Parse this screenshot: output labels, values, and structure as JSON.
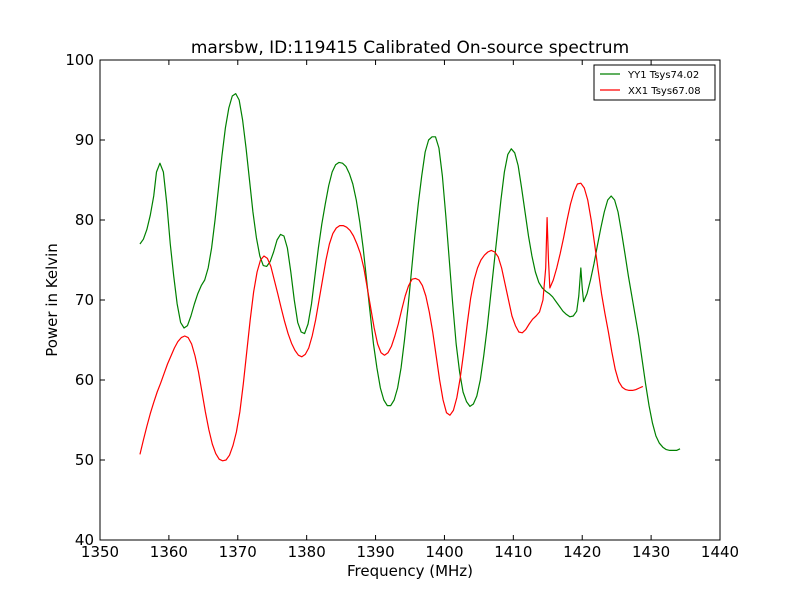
{
  "chart_data": {
    "type": "line",
    "title": "marsbw, ID:119415 Calibrated On-source spectrum",
    "xlabel": "Frequency (MHz)",
    "ylabel": "Power in Kelvin",
    "xlim": [
      1350,
      1440
    ],
    "ylim": [
      40,
      100
    ],
    "xticks": [
      "1350",
      "1360",
      "1370",
      "1380",
      "1390",
      "1400",
      "1410",
      "1420",
      "1430",
      "1440"
    ],
    "yticks": [
      "40",
      "50",
      "60",
      "70",
      "80",
      "90",
      "100"
    ],
    "grid": false,
    "legend_position": "top-right",
    "series": [
      {
        "name": "YY1 Tsys74.02",
        "color": "#008000",
        "points": [
          [
            1355.8,
            77
          ],
          [
            1356.3,
            77.6
          ],
          [
            1356.8,
            78.8
          ],
          [
            1357.3,
            80.6
          ],
          [
            1357.8,
            83
          ],
          [
            1358.2,
            86
          ],
          [
            1358.7,
            87.1
          ],
          [
            1359.2,
            86
          ],
          [
            1359.7,
            82
          ],
          [
            1360.2,
            77
          ],
          [
            1360.7,
            73
          ],
          [
            1361.2,
            69.5
          ],
          [
            1361.7,
            67.2
          ],
          [
            1362.2,
            66.5
          ],
          [
            1362.7,
            66.8
          ],
          [
            1363.2,
            68
          ],
          [
            1363.7,
            69.5
          ],
          [
            1364.2,
            70.8
          ],
          [
            1364.7,
            71.8
          ],
          [
            1365.2,
            72.5
          ],
          [
            1365.7,
            74
          ],
          [
            1366.2,
            76.5
          ],
          [
            1366.7,
            80
          ],
          [
            1367.2,
            84
          ],
          [
            1367.7,
            88
          ],
          [
            1368.2,
            91.5
          ],
          [
            1368.7,
            94
          ],
          [
            1369.2,
            95.5
          ],
          [
            1369.7,
            95.8
          ],
          [
            1370.2,
            95
          ],
          [
            1370.7,
            92.5
          ],
          [
            1371.2,
            89
          ],
          [
            1371.7,
            85
          ],
          [
            1372.2,
            81
          ],
          [
            1372.7,
            77.8
          ],
          [
            1373.2,
            75.5
          ],
          [
            1373.7,
            74.3
          ],
          [
            1374.2,
            74.2
          ],
          [
            1374.7,
            74.8
          ],
          [
            1375.2,
            76
          ],
          [
            1375.7,
            77.5
          ],
          [
            1376.2,
            78.2
          ],
          [
            1376.7,
            78
          ],
          [
            1377.2,
            76.5
          ],
          [
            1377.7,
            73.5
          ],
          [
            1378.2,
            70
          ],
          [
            1378.7,
            67.2
          ],
          [
            1379.2,
            66
          ],
          [
            1379.7,
            65.8
          ],
          [
            1380.2,
            67
          ],
          [
            1380.7,
            69.5
          ],
          [
            1381.2,
            73
          ],
          [
            1381.7,
            76.5
          ],
          [
            1382.2,
            79.5
          ],
          [
            1382.7,
            82
          ],
          [
            1383.2,
            84.3
          ],
          [
            1383.7,
            86
          ],
          [
            1384.2,
            86.9
          ],
          [
            1384.7,
            87.2
          ],
          [
            1385.2,
            87.1
          ],
          [
            1385.7,
            86.7
          ],
          [
            1386.2,
            85.8
          ],
          [
            1386.7,
            84.5
          ],
          [
            1387.2,
            82.5
          ],
          [
            1387.7,
            79.8
          ],
          [
            1388.2,
            76.5
          ],
          [
            1388.7,
            72.5
          ],
          [
            1389.2,
            68.5
          ],
          [
            1389.7,
            64.5
          ],
          [
            1390.2,
            61.5
          ],
          [
            1390.7,
            59
          ],
          [
            1391.2,
            57.5
          ],
          [
            1391.7,
            56.8
          ],
          [
            1392.2,
            56.8
          ],
          [
            1392.7,
            57.5
          ],
          [
            1393.2,
            59
          ],
          [
            1393.7,
            61.5
          ],
          [
            1394.2,
            65
          ],
          [
            1394.7,
            69
          ],
          [
            1395.2,
            73.5
          ],
          [
            1395.7,
            78
          ],
          [
            1396.2,
            82
          ],
          [
            1396.7,
            85.5
          ],
          [
            1397.2,
            88.5
          ],
          [
            1397.7,
            90
          ],
          [
            1398.2,
            90.4
          ],
          [
            1398.7,
            90.4
          ],
          [
            1399.2,
            89
          ],
          [
            1399.7,
            85.5
          ],
          [
            1400.2,
            80.5
          ],
          [
            1400.7,
            75
          ],
          [
            1401.2,
            69.5
          ],
          [
            1401.7,
            64.5
          ],
          [
            1402.2,
            61
          ],
          [
            1402.7,
            58.5
          ],
          [
            1403.2,
            57.3
          ],
          [
            1403.7,
            56.7
          ],
          [
            1404.2,
            57
          ],
          [
            1404.7,
            58
          ],
          [
            1405.2,
            60
          ],
          [
            1405.7,
            63
          ],
          [
            1406.2,
            66.5
          ],
          [
            1406.7,
            70.5
          ],
          [
            1407.2,
            74.5
          ],
          [
            1407.7,
            78.5
          ],
          [
            1408.2,
            82.5
          ],
          [
            1408.7,
            86
          ],
          [
            1409.2,
            88.2
          ],
          [
            1409.7,
            88.9
          ],
          [
            1410.2,
            88.4
          ],
          [
            1410.7,
            86.8
          ],
          [
            1411.2,
            84
          ],
          [
            1411.7,
            81
          ],
          [
            1412.2,
            78
          ],
          [
            1412.7,
            75.5
          ],
          [
            1413.2,
            73.5
          ],
          [
            1413.7,
            72.2
          ],
          [
            1414.2,
            71.5
          ],
          [
            1414.7,
            71.1
          ],
          [
            1415.2,
            70.8
          ],
          [
            1415.7,
            70.4
          ],
          [
            1416.2,
            69.8
          ],
          [
            1416.7,
            69.2
          ],
          [
            1417.2,
            68.6
          ],
          [
            1417.7,
            68.2
          ],
          [
            1418.2,
            67.9
          ],
          [
            1418.7,
            68
          ],
          [
            1419.2,
            68.6
          ],
          [
            1419.5,
            70.5
          ],
          [
            1419.8,
            74
          ],
          [
            1420.0,
            71.5
          ],
          [
            1420.2,
            69.8
          ],
          [
            1420.7,
            70.8
          ],
          [
            1421.2,
            72.5
          ],
          [
            1421.7,
            74.5
          ],
          [
            1422.2,
            76.8
          ],
          [
            1422.7,
            79
          ],
          [
            1423.2,
            81
          ],
          [
            1423.7,
            82.5
          ],
          [
            1424.2,
            83
          ],
          [
            1424.7,
            82.5
          ],
          [
            1425.2,
            81
          ],
          [
            1425.7,
            78.5
          ],
          [
            1426.2,
            75.8
          ],
          [
            1426.7,
            73
          ],
          [
            1427.2,
            70.5
          ],
          [
            1427.7,
            68
          ],
          [
            1428.2,
            65.5
          ],
          [
            1428.7,
            62.5
          ],
          [
            1429.2,
            59.5
          ],
          [
            1429.7,
            56.8
          ],
          [
            1430.2,
            54.6
          ],
          [
            1430.7,
            53
          ],
          [
            1431.2,
            52.1
          ],
          [
            1431.7,
            51.6
          ],
          [
            1432.2,
            51.3
          ],
          [
            1432.7,
            51.2
          ],
          [
            1433.2,
            51.2
          ],
          [
            1433.7,
            51.2
          ],
          [
            1434.2,
            51.4
          ]
        ]
      },
      {
        "name": "XX1 Tsys67.08",
        "color": "#ff0000",
        "points": [
          [
            1355.8,
            50.7
          ],
          [
            1356.3,
            52.5
          ],
          [
            1356.8,
            54.2
          ],
          [
            1357.3,
            55.8
          ],
          [
            1357.8,
            57.2
          ],
          [
            1358.3,
            58.5
          ],
          [
            1358.8,
            59.6
          ],
          [
            1359.3,
            60.8
          ],
          [
            1359.8,
            62
          ],
          [
            1360.3,
            63
          ],
          [
            1360.8,
            64
          ],
          [
            1361.3,
            64.8
          ],
          [
            1361.8,
            65.3
          ],
          [
            1362.3,
            65.5
          ],
          [
            1362.8,
            65.3
          ],
          [
            1363.3,
            64.5
          ],
          [
            1363.8,
            63
          ],
          [
            1364.3,
            61
          ],
          [
            1364.8,
            58.5
          ],
          [
            1365.3,
            56
          ],
          [
            1365.8,
            53.8
          ],
          [
            1366.3,
            52
          ],
          [
            1366.8,
            50.8
          ],
          [
            1367.3,
            50.1
          ],
          [
            1367.8,
            49.9
          ],
          [
            1368.3,
            50
          ],
          [
            1368.8,
            50.6
          ],
          [
            1369.3,
            51.8
          ],
          [
            1369.8,
            53.5
          ],
          [
            1370.3,
            56
          ],
          [
            1370.8,
            59.5
          ],
          [
            1371.3,
            63.5
          ],
          [
            1371.8,
            67.5
          ],
          [
            1372.3,
            71
          ],
          [
            1372.8,
            73.5
          ],
          [
            1373.3,
            75
          ],
          [
            1373.8,
            75.5
          ],
          [
            1374.3,
            75.2
          ],
          [
            1374.8,
            74.2
          ],
          [
            1375.3,
            72.5
          ],
          [
            1375.8,
            70.8
          ],
          [
            1376.3,
            69
          ],
          [
            1376.8,
            67.3
          ],
          [
            1377.3,
            65.8
          ],
          [
            1377.8,
            64.6
          ],
          [
            1378.3,
            63.7
          ],
          [
            1378.8,
            63.1
          ],
          [
            1379.3,
            62.9
          ],
          [
            1379.8,
            63.2
          ],
          [
            1380.3,
            64
          ],
          [
            1380.8,
            65.5
          ],
          [
            1381.3,
            67.5
          ],
          [
            1381.8,
            70
          ],
          [
            1382.3,
            72.5
          ],
          [
            1382.8,
            75
          ],
          [
            1383.3,
            77
          ],
          [
            1383.8,
            78.3
          ],
          [
            1384.3,
            79
          ],
          [
            1384.8,
            79.3
          ],
          [
            1385.3,
            79.3
          ],
          [
            1385.8,
            79.1
          ],
          [
            1386.3,
            78.7
          ],
          [
            1386.8,
            78
          ],
          [
            1387.3,
            77
          ],
          [
            1387.8,
            75.8
          ],
          [
            1388.3,
            74
          ],
          [
            1388.8,
            71.5
          ],
          [
            1389.3,
            69
          ],
          [
            1389.8,
            66.5
          ],
          [
            1390.3,
            64.5
          ],
          [
            1390.8,
            63.4
          ],
          [
            1391.3,
            63.1
          ],
          [
            1391.8,
            63.4
          ],
          [
            1392.3,
            64.2
          ],
          [
            1392.8,
            65.5
          ],
          [
            1393.3,
            67
          ],
          [
            1393.8,
            68.8
          ],
          [
            1394.3,
            70.5
          ],
          [
            1394.8,
            71.8
          ],
          [
            1395.3,
            72.6
          ],
          [
            1395.8,
            72.7
          ],
          [
            1396.3,
            72.5
          ],
          [
            1396.8,
            71.8
          ],
          [
            1397.3,
            70.5
          ],
          [
            1397.8,
            68.5
          ],
          [
            1398.3,
            66
          ],
          [
            1398.8,
            63
          ],
          [
            1399.3,
            60
          ],
          [
            1399.8,
            57.5
          ],
          [
            1400.3,
            55.9
          ],
          [
            1400.8,
            55.6
          ],
          [
            1401.3,
            56.2
          ],
          [
            1401.8,
            57.8
          ],
          [
            1402.3,
            60.3
          ],
          [
            1402.8,
            63.5
          ],
          [
            1403.3,
            67
          ],
          [
            1403.8,
            70.2
          ],
          [
            1404.3,
            72.5
          ],
          [
            1404.8,
            74
          ],
          [
            1405.3,
            75
          ],
          [
            1405.8,
            75.6
          ],
          [
            1406.3,
            76
          ],
          [
            1406.8,
            76.2
          ],
          [
            1407.3,
            76
          ],
          [
            1407.8,
            75.4
          ],
          [
            1408.3,
            74
          ],
          [
            1408.8,
            72
          ],
          [
            1409.3,
            70
          ],
          [
            1409.8,
            68
          ],
          [
            1410.3,
            66.8
          ],
          [
            1410.8,
            66
          ],
          [
            1411.3,
            65.9
          ],
          [
            1411.8,
            66.3
          ],
          [
            1412.3,
            67
          ],
          [
            1412.8,
            67.6
          ],
          [
            1413.3,
            68
          ],
          [
            1413.8,
            68.5
          ],
          [
            1414.3,
            70
          ],
          [
            1414.7,
            74
          ],
          [
            1414.9,
            80.3
          ],
          [
            1415.1,
            75
          ],
          [
            1415.3,
            71.5
          ],
          [
            1415.8,
            72.5
          ],
          [
            1416.3,
            74
          ],
          [
            1416.8,
            75.8
          ],
          [
            1417.3,
            77.8
          ],
          [
            1417.8,
            80
          ],
          [
            1418.3,
            82
          ],
          [
            1418.8,
            83.5
          ],
          [
            1419.3,
            84.5
          ],
          [
            1419.8,
            84.6
          ],
          [
            1420.3,
            84
          ],
          [
            1420.8,
            82.5
          ],
          [
            1421.3,
            80
          ],
          [
            1421.8,
            77
          ],
          [
            1422.3,
            73.8
          ],
          [
            1422.8,
            70.8
          ],
          [
            1423.3,
            68.3
          ],
          [
            1423.8,
            66
          ],
          [
            1424.3,
            63.5
          ],
          [
            1424.8,
            61.3
          ],
          [
            1425.3,
            59.8
          ],
          [
            1425.8,
            59.1
          ],
          [
            1426.3,
            58.8
          ],
          [
            1426.8,
            58.7
          ],
          [
            1427.3,
            58.7
          ],
          [
            1427.8,
            58.8
          ],
          [
            1428.3,
            59
          ],
          [
            1428.8,
            59.2
          ]
        ]
      }
    ]
  }
}
